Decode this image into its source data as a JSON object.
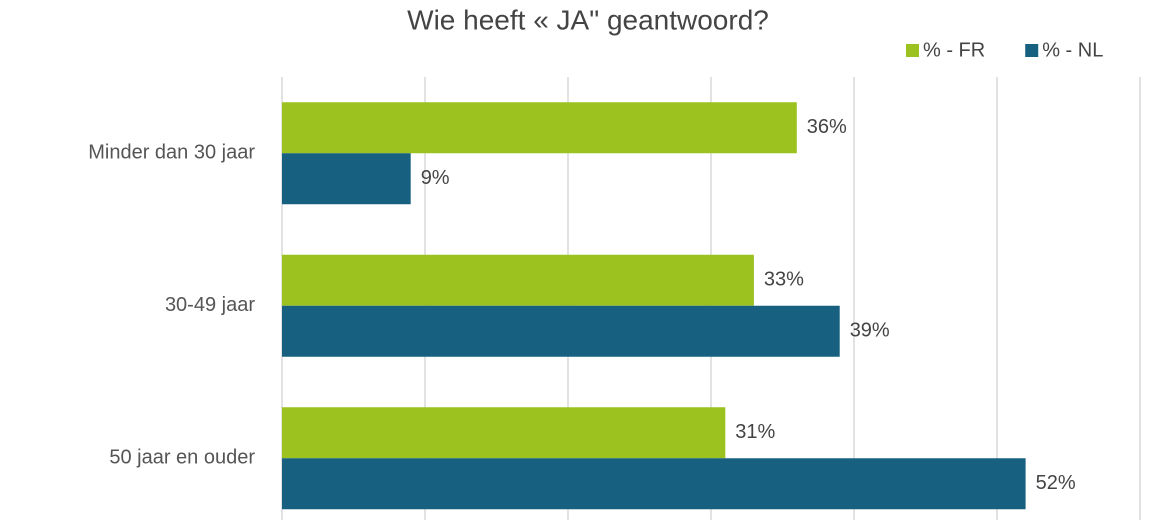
{
  "chart_data": {
    "type": "bar",
    "orientation": "horizontal",
    "title": "Wie heeft « JA\" geantwoord?",
    "categories": [
      "Minder dan 30 jaar",
      "30-49 jaar",
      "50 jaar en ouder"
    ],
    "series": [
      {
        "name": "% - FR",
        "color": "#9bc21f",
        "values": [
          36,
          33,
          31
        ],
        "value_labels": [
          "36%",
          "33%",
          "31%"
        ]
      },
      {
        "name": "% - NL",
        "color": "#17607f",
        "values": [
          9,
          39,
          52
        ],
        "value_labels": [
          "9%",
          "39%",
          "52%"
        ]
      }
    ],
    "xlim": [
      0,
      60
    ],
    "xticks": [
      0,
      10,
      20,
      30,
      40,
      50,
      60
    ],
    "grid": true,
    "legend": "top-right"
  }
}
